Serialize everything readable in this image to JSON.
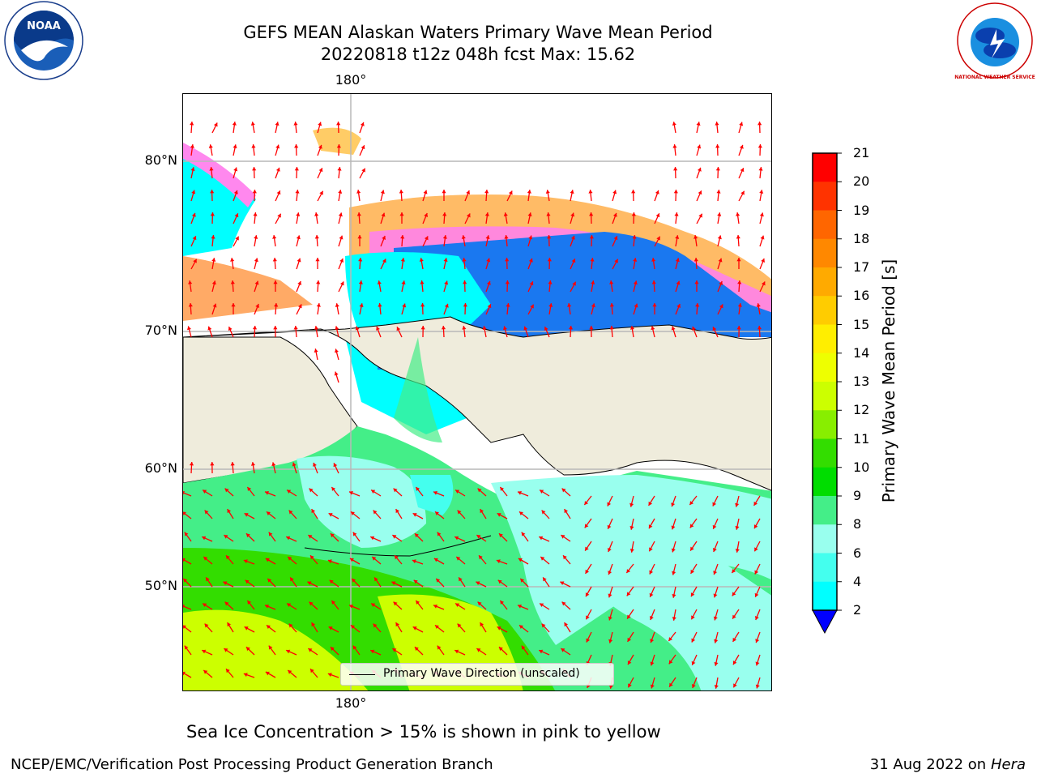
{
  "header": {
    "title_line1": "GEFS MEAN Alaskan Waters Primary Wave Mean Period",
    "title_line2": "20220818 t12z 048h fcst   Max: 15.62"
  },
  "logos": {
    "left": {
      "icon": "noaa-logo",
      "text": "NOAA"
    },
    "right": {
      "icon": "national-weather-service-logo",
      "text": "NATIONAL WEATHER SERVICE"
    }
  },
  "map": {
    "lon_label_top": "180°",
    "lon_label_bottom": "180°",
    "lat_labels": [
      "80°N",
      "70°N",
      "60°N",
      "50°N"
    ],
    "legend": "Primary Wave Direction (unscaled)",
    "land_color": "#efecdc",
    "arrow_color": "#ff0000"
  },
  "colorbar": {
    "label": "Primary Wave Mean Period [s]",
    "ticks": [
      "21",
      "20",
      "19",
      "18",
      "17",
      "16",
      "15",
      "14",
      "13",
      "12",
      "11",
      "10",
      "9",
      "8",
      "6",
      "4",
      "2"
    ],
    "colors": [
      "#ff0000",
      "#ff3300",
      "#ff6600",
      "#ff8800",
      "#ffaa00",
      "#ffcc00",
      "#ffee00",
      "#eeff00",
      "#ccff00",
      "#88ee00",
      "#33dd00",
      "#00dd00",
      "#44ee88",
      "#99ffee",
      "#44ffee",
      "#00ffff",
      "#0088ff",
      "#0000ff"
    ]
  },
  "footer": {
    "ice_note": "Sea Ice Concentration > 15% is shown in pink to yellow",
    "left": "NCEP/EMC/Verification Post Processing Product Generation Branch",
    "date": "31 Aug 2022 on",
    "machine": "Hera"
  }
}
